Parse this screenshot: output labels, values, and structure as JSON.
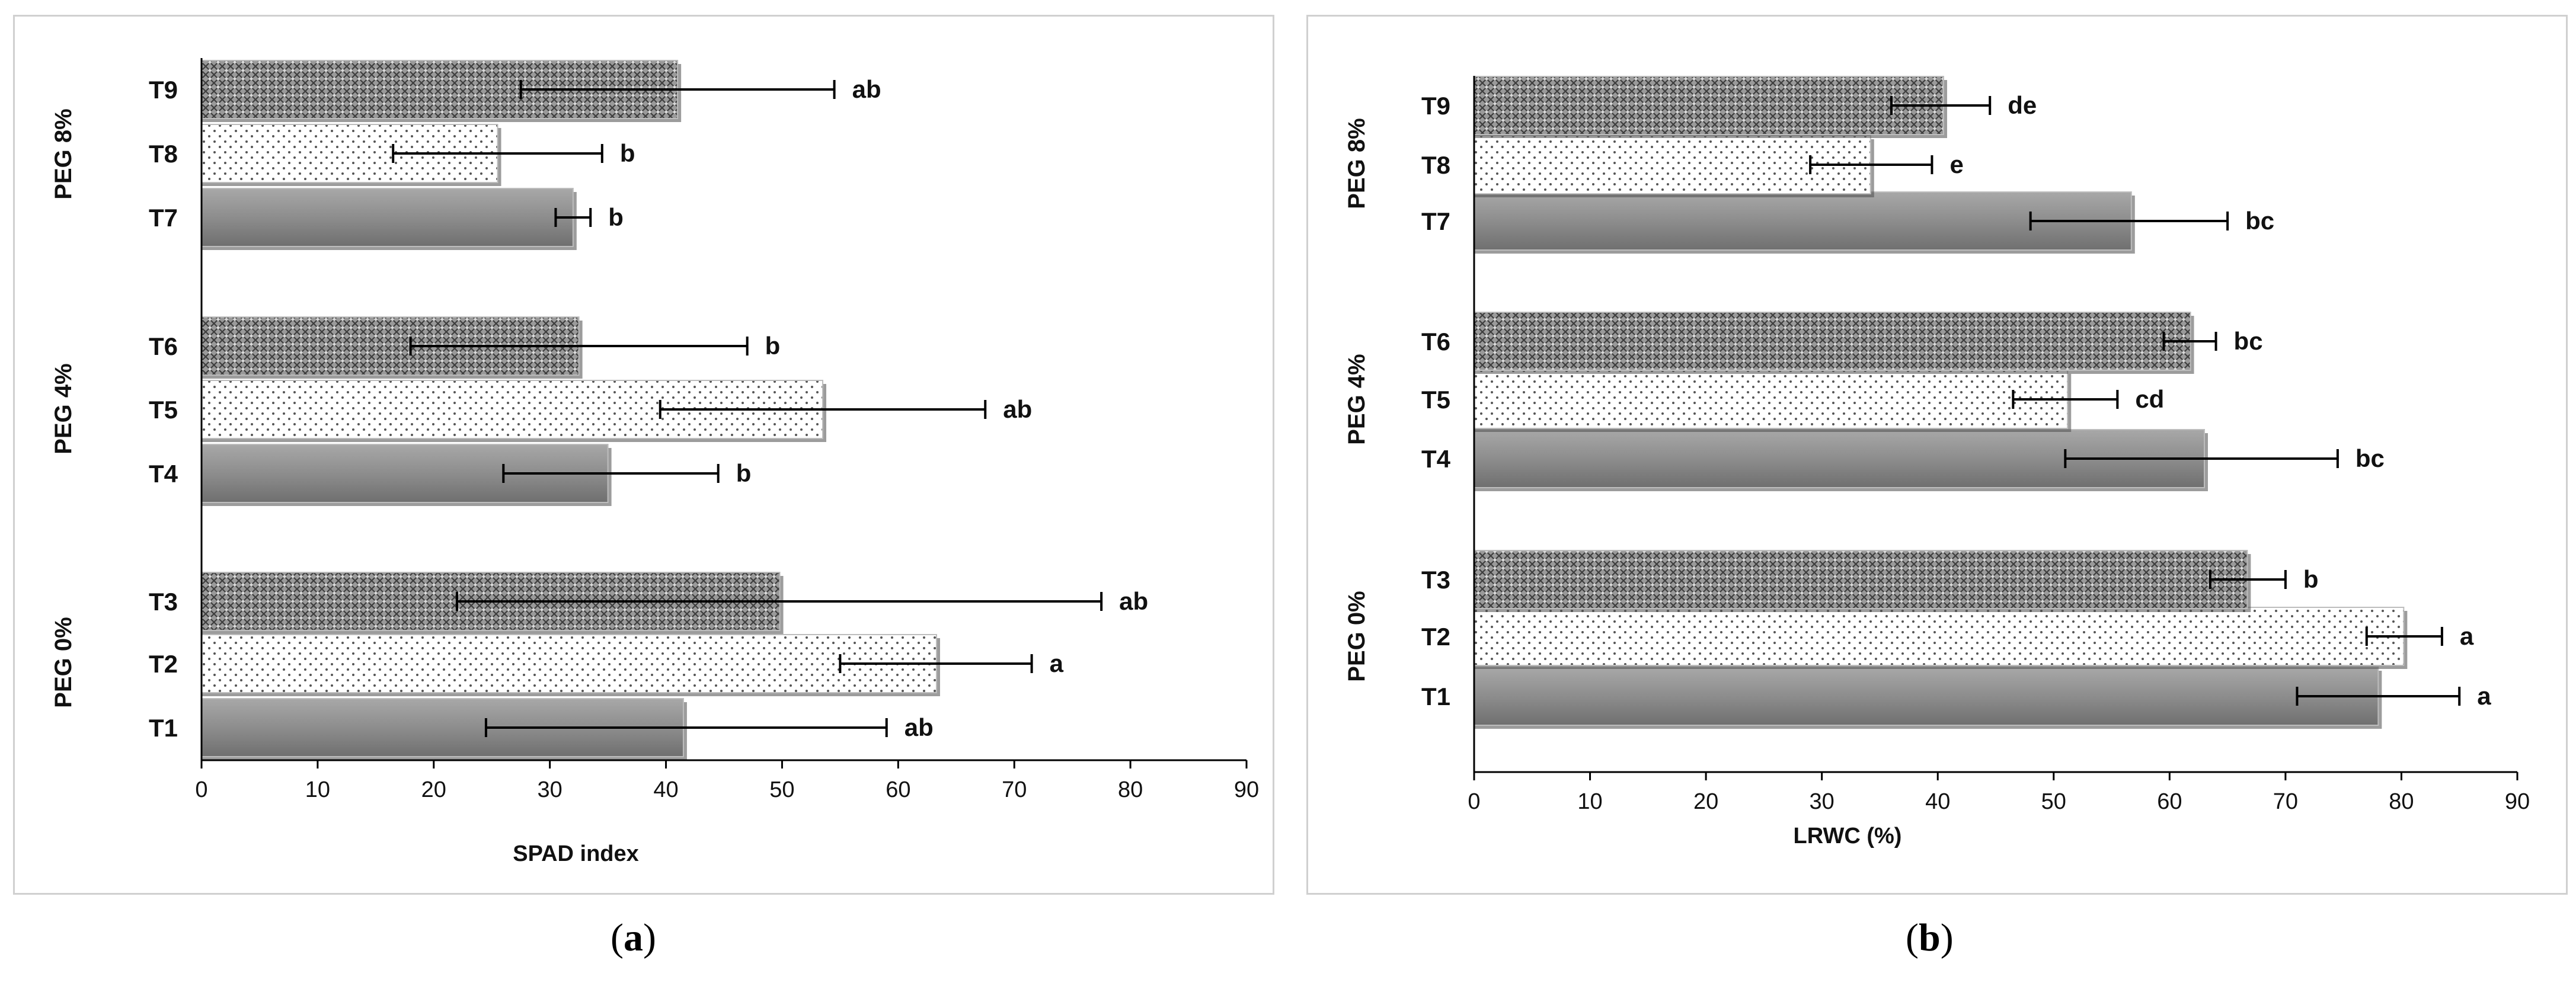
{
  "chart_data": [
    {
      "panel": "a",
      "type": "bar",
      "orientation": "horizontal",
      "xlabel": "SPAD index",
      "xlim": [
        0,
        90
      ],
      "xticks": [
        0,
        10,
        20,
        30,
        40,
        50,
        60,
        70,
        80,
        90
      ],
      "grid": false,
      "groups": [
        {
          "label": "PEG 0%",
          "bars": [
            "T1",
            "T2",
            "T3"
          ]
        },
        {
          "label": "PEG 4%",
          "bars": [
            "T4",
            "T5",
            "T6"
          ]
        },
        {
          "label": "PEG 8%",
          "bars": [
            "T7",
            "T8",
            "T9"
          ]
        }
      ],
      "bars": [
        {
          "label": "T1",
          "value": 41.5,
          "err_low": 24.5,
          "err_high": 59,
          "letter": "ab",
          "pattern": "solid"
        },
        {
          "label": "T2",
          "value": 63.3,
          "err_low": 55,
          "err_high": 71.5,
          "letter": "a",
          "pattern": "dots"
        },
        {
          "label": "T3",
          "value": 49.8,
          "err_low": 22,
          "err_high": 77.5,
          "letter": "ab",
          "pattern": "crosshatch"
        },
        {
          "label": "T4",
          "value": 35,
          "err_low": 26,
          "err_high": 44.5,
          "letter": "b",
          "pattern": "solid"
        },
        {
          "label": "T5",
          "value": 53.5,
          "err_low": 39.5,
          "err_high": 67.5,
          "letter": "ab",
          "pattern": "dots"
        },
        {
          "label": "T6",
          "value": 32.5,
          "err_low": 18,
          "err_high": 47,
          "letter": "b",
          "pattern": "crosshatch"
        },
        {
          "label": "T7",
          "value": 32,
          "err_low": 30.5,
          "err_high": 33.5,
          "letter": "b",
          "pattern": "solid"
        },
        {
          "label": "T8",
          "value": 25.5,
          "err_low": 16.5,
          "err_high": 34.5,
          "letter": "b",
          "pattern": "dots"
        },
        {
          "label": "T9",
          "value": 41,
          "err_low": 27.5,
          "err_high": 54.5,
          "letter": "ab",
          "pattern": "crosshatch"
        }
      ]
    },
    {
      "panel": "b",
      "type": "bar",
      "orientation": "horizontal",
      "xlabel": "LRWC (%)",
      "xlim": [
        0,
        90
      ],
      "xticks": [
        0,
        10,
        20,
        30,
        40,
        50,
        60,
        70,
        80,
        90
      ],
      "grid": false,
      "groups": [
        {
          "label": "PEG 0%",
          "bars": [
            "T1",
            "T2",
            "T3"
          ]
        },
        {
          "label": "PEG 4%",
          "bars": [
            "T4",
            "T5",
            "T6"
          ]
        },
        {
          "label": "PEG 8%",
          "bars": [
            "T7",
            "T8",
            "T9"
          ]
        }
      ],
      "bars": [
        {
          "label": "T1",
          "value": 78,
          "err_low": 71,
          "err_high": 85,
          "letter": "a",
          "pattern": "solid"
        },
        {
          "label": "T2",
          "value": 80.2,
          "err_low": 77,
          "err_high": 83.5,
          "letter": "a",
          "pattern": "dots"
        },
        {
          "label": "T3",
          "value": 66.7,
          "err_low": 63.5,
          "err_high": 70,
          "letter": "b",
          "pattern": "crosshatch"
        },
        {
          "label": "T4",
          "value": 63,
          "err_low": 51,
          "err_high": 74.5,
          "letter": "bc",
          "pattern": "solid"
        },
        {
          "label": "T5",
          "value": 51.2,
          "err_low": 46.5,
          "err_high": 55.5,
          "letter": "cd",
          "pattern": "dots"
        },
        {
          "label": "T6",
          "value": 61.8,
          "err_low": 59.5,
          "err_high": 64,
          "letter": "bc",
          "pattern": "crosshatch"
        },
        {
          "label": "T7",
          "value": 56.7,
          "err_low": 48,
          "err_high": 65,
          "letter": "bc",
          "pattern": "solid"
        },
        {
          "label": "T8",
          "value": 34.2,
          "err_low": 29,
          "err_high": 39.5,
          "letter": "e",
          "pattern": "dots"
        },
        {
          "label": "T9",
          "value": 40.5,
          "err_low": 36,
          "err_high": 44.5,
          "letter": "de",
          "pattern": "crosshatch"
        }
      ]
    }
  ],
  "captions": {
    "a": "a",
    "b": "b"
  },
  "colors": {
    "solid_fill": "#8a8a8a",
    "pattern_fill": "#6e6e6e",
    "error_bar": "#000000",
    "axis": "#000000"
  }
}
